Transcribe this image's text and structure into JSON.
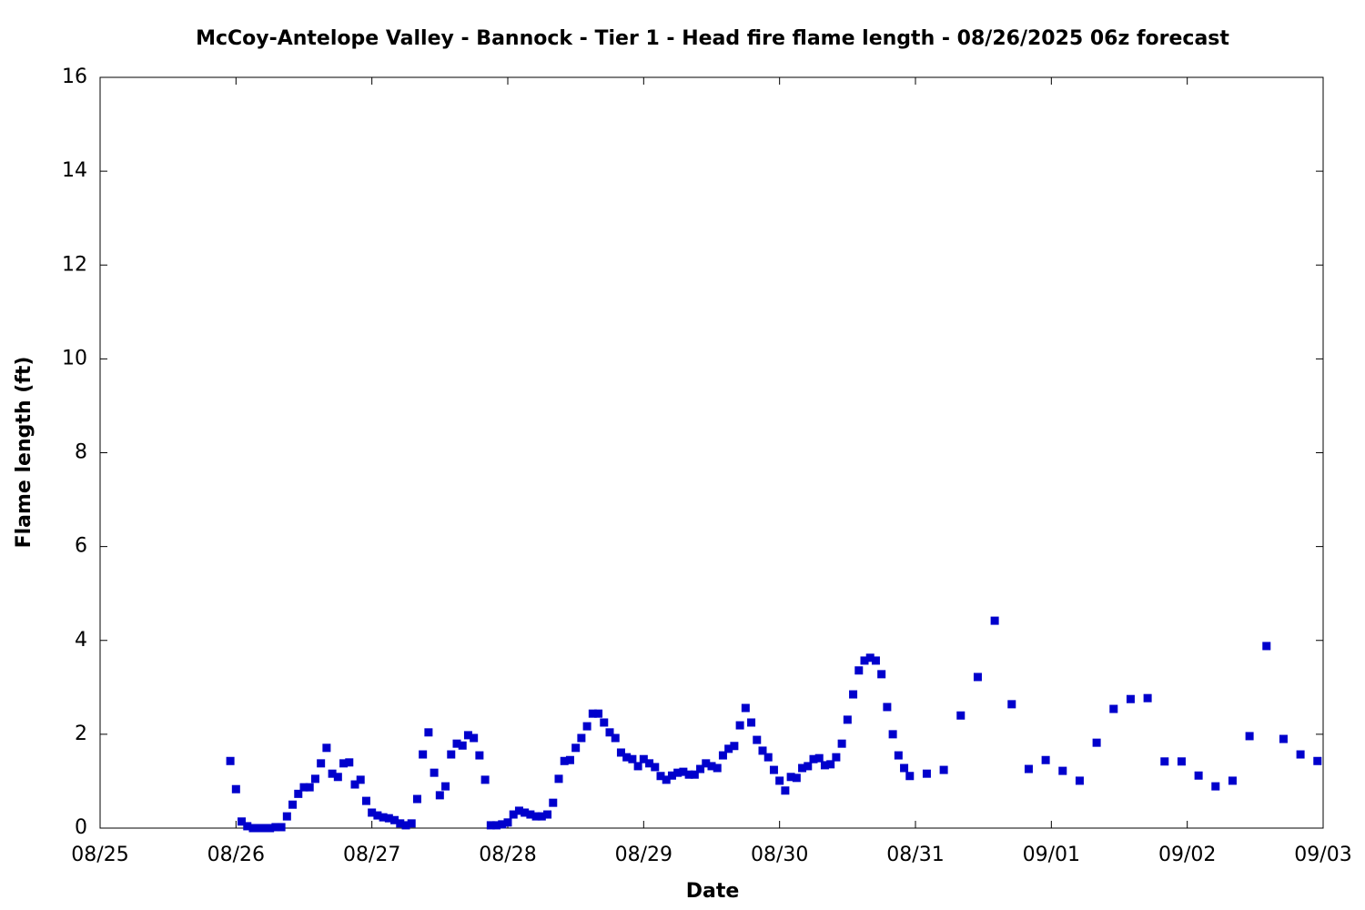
{
  "chart_data": {
    "type": "scatter",
    "title": "McCoy-Antelope Valley - Bannock - Tier 1 - Head fire flame length - 08/26/2025 06z forecast",
    "x_label": "Date",
    "y_label": "Flame length (ft)",
    "xlim": [
      0,
      216
    ],
    "ylim": [
      0,
      16
    ],
    "xticks": [
      {
        "value": 0,
        "label": "08/25"
      },
      {
        "value": 24,
        "label": "08/26"
      },
      {
        "value": 48,
        "label": "08/27"
      },
      {
        "value": 72,
        "label": "08/28"
      },
      {
        "value": 96,
        "label": "08/29"
      },
      {
        "value": 120,
        "label": "08/30"
      },
      {
        "value": 144,
        "label": "08/31"
      },
      {
        "value": 168,
        "label": "09/01"
      },
      {
        "value": 192,
        "label": "09/02"
      },
      {
        "value": 216,
        "label": "09/03"
      }
    ],
    "yticks": [
      0,
      2,
      4,
      6,
      8,
      10,
      12,
      14,
      16
    ],
    "color": "#0000cc",
    "x": [
      23,
      24,
      25,
      26,
      27,
      28,
      29,
      30,
      31,
      32,
      33,
      34,
      35,
      36,
      37,
      38,
      39,
      40,
      41,
      42,
      43,
      44,
      45,
      46,
      47,
      48,
      49,
      50,
      51,
      52,
      53,
      54,
      55,
      56,
      57,
      58,
      59,
      60,
      61,
      62,
      63,
      64,
      65,
      66,
      67,
      68,
      69,
      70,
      71,
      72,
      73,
      74,
      75,
      76,
      77,
      78,
      79,
      80,
      81,
      82,
      83,
      84,
      85,
      86,
      87,
      88,
      89,
      90,
      91,
      92,
      93,
      94,
      95,
      96,
      97,
      98,
      99,
      100,
      101,
      102,
      103,
      104,
      105,
      106,
      107,
      108,
      109,
      110,
      111,
      112,
      113,
      114,
      115,
      116,
      117,
      118,
      119,
      120,
      121,
      122,
      123,
      124,
      125,
      126,
      127,
      128,
      129,
      130,
      131,
      132,
      133,
      134,
      135,
      136,
      137,
      138,
      139,
      140,
      141,
      142,
      143,
      146,
      149,
      152,
      155,
      158,
      161,
      164,
      167,
      170,
      173,
      176,
      179,
      182,
      185,
      188,
      191,
      194,
      197,
      200,
      203,
      206,
      209,
      212,
      215
    ],
    "values": [
      1.43,
      0.83,
      0.14,
      0.04,
      0,
      0,
      0,
      0,
      0.02,
      0.02,
      0.25,
      0.5,
      0.73,
      0.87,
      0.87,
      1.05,
      1.38,
      1.71,
      1.16,
      1.09,
      1.38,
      1.4,
      0.93,
      1.03,
      0.58,
      0.33,
      0.27,
      0.23,
      0.21,
      0.17,
      0.1,
      0.06,
      0.1,
      0.62,
      1.57,
      2.04,
      1.18,
      0.7,
      0.89,
      1.57,
      1.8,
      1.76,
      1.98,
      1.92,
      1.55,
      1.03,
      0.06,
      0.06,
      0.08,
      0.12,
      0.29,
      0.37,
      0.33,
      0.29,
      0.25,
      0.25,
      0.29,
      0.54,
      1.05,
      1.43,
      1.45,
      1.71,
      1.92,
      2.17,
      2.44,
      2.44,
      2.25,
      2.04,
      1.92,
      1.61,
      1.51,
      1.47,
      1.32,
      1.47,
      1.38,
      1.3,
      1.11,
      1.03,
      1.12,
      1.18,
      1.2,
      1.14,
      1.14,
      1.26,
      1.38,
      1.32,
      1.28,
      1.55,
      1.69,
      1.75,
      2.19,
      2.56,
      2.25,
      1.88,
      1.65,
      1.51,
      1.24,
      1.01,
      0.8,
      1.09,
      1.07,
      1.28,
      1.32,
      1.47,
      1.49,
      1.34,
      1.36,
      1.51,
      1.8,
      2.31,
      2.85,
      3.36,
      3.57,
      3.63,
      3.57,
      3.28,
      2.58,
      2.0,
      1.55,
      1.28,
      1.11,
      1.16,
      1.24,
      2.4,
      3.22,
      4.42,
      2.64,
      1.26,
      1.45,
      1.22,
      1.01,
      1.82,
      2.54,
      2.75,
      2.77,
      1.42,
      1.42,
      1.12,
      0.89,
      1.01,
      1.96,
      3.88,
      1.9,
      1.57,
      1.43
    ]
  }
}
